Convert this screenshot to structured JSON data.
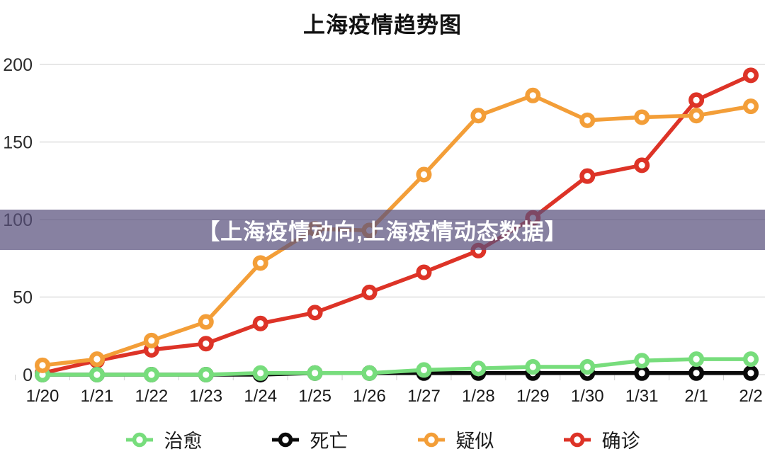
{
  "title": "上海疫情趋势图",
  "overlay": {
    "text": "【上海疫情动向,上海疫情动态数据】",
    "bg_rgba": "rgba(89,81,125,0.72)",
    "text_color": "#ffffff"
  },
  "chart_data": {
    "type": "line",
    "title": "上海疫情趋势图",
    "xlabel": "",
    "ylabel": "",
    "ylim": [
      0,
      200
    ],
    "yticks": [
      0,
      50,
      100,
      150,
      200
    ],
    "grid": true,
    "legend_position": "bottom",
    "categories": [
      "1/20",
      "1/21",
      "1/22",
      "1/23",
      "1/24",
      "1/25",
      "1/26",
      "1/27",
      "1/28",
      "1/29",
      "1/30",
      "1/31",
      "2/1",
      "2/2"
    ],
    "series": [
      {
        "name": "治愈",
        "color": "#77DD7C",
        "values": [
          0,
          0,
          0,
          0,
          1,
          1,
          1,
          3,
          4,
          5,
          5,
          9,
          10,
          10
        ]
      },
      {
        "name": "死亡",
        "color": "#0A0A0A",
        "values": [
          0,
          0,
          0,
          0,
          0,
          1,
          1,
          1,
          1,
          1,
          1,
          1,
          1,
          1
        ]
      },
      {
        "name": "疑似",
        "color": "#F39E38",
        "values": [
          6,
          10,
          22,
          34,
          72,
          94,
          93,
          129,
          167,
          180,
          164,
          166,
          167,
          173
        ]
      },
      {
        "name": "确诊",
        "color": "#DD3327",
        "values": [
          1,
          9,
          16,
          20,
          33,
          40,
          53,
          66,
          80,
          101,
          128,
          135,
          177,
          193
        ]
      }
    ],
    "axis_colors": {
      "gridline": "#E7E7E7",
      "tick": "#CFCFCF",
      "ylabel_text": "#2b2b2b",
      "xlabel_text": "#1a1a1a"
    }
  }
}
